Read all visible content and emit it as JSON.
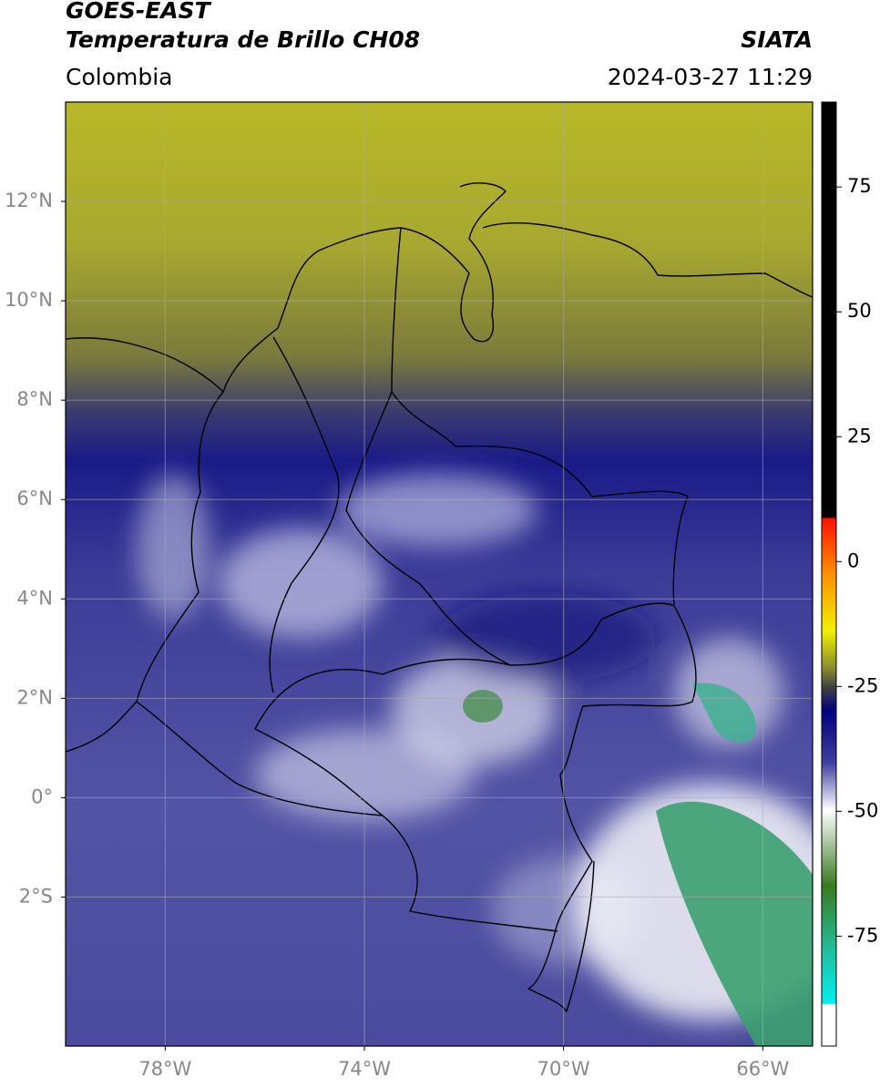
{
  "chart_data": {
    "type": "map",
    "title": "GOES-EAST",
    "subtitle": "Temperatura de Brillo CH08",
    "source": "SIATA",
    "region": "Colombia",
    "datetime": "2024-03-27 11:29",
    "xlim": [
      -80,
      -65
    ],
    "xticks": [
      {
        "value": -78,
        "label": "78°W"
      },
      {
        "value": -74,
        "label": "74°W"
      },
      {
        "value": -70,
        "label": "70°W"
      },
      {
        "value": -66,
        "label": "66°W"
      }
    ],
    "ylim": [
      -5,
      14
    ],
    "yticks": [
      {
        "value": 12,
        "label": "12°N"
      },
      {
        "value": 10,
        "label": "10°N"
      },
      {
        "value": 8,
        "label": "8°N"
      },
      {
        "value": 6,
        "label": "6°N"
      },
      {
        "value": 4,
        "label": "4°N"
      },
      {
        "value": 2,
        "label": "2°N"
      },
      {
        "value": 0,
        "label": "0°"
      },
      {
        "value": -2,
        "label": "2°S"
      }
    ],
    "grid": true,
    "colorbar": {
      "lim": [
        -97,
        92
      ],
      "ticks": [
        75,
        50,
        25,
        0,
        -25,
        -50,
        -75
      ]
    }
  }
}
